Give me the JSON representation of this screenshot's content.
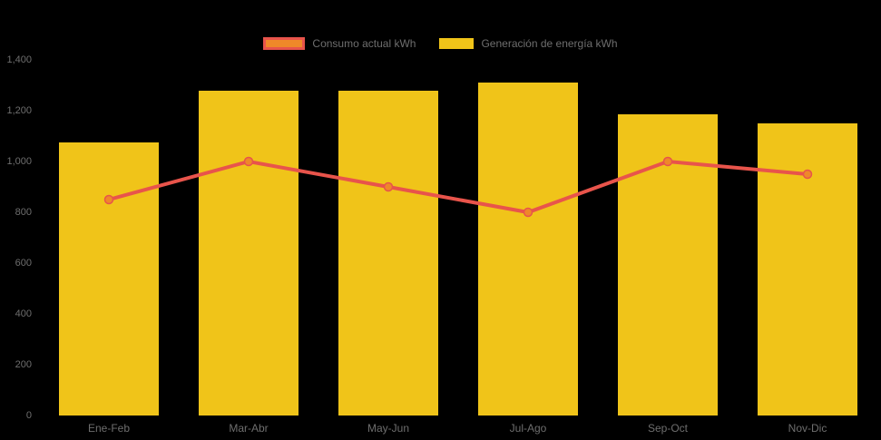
{
  "colors": {
    "background": "#000000",
    "bar_fill": "#F0C419",
    "line_stroke": "#E8544B",
    "marker_fill": "#EF8829",
    "marker_stroke": "#E8544B",
    "axis_text": "#6E6E6E"
  },
  "legend": {
    "position": "top",
    "items": [
      {
        "label": "Consumo actual kWh",
        "swatch": "orange-with-red-border"
      },
      {
        "label": "Generación de energía kWh",
        "swatch": "yellow"
      }
    ]
  },
  "chart_data": {
    "type": "bar",
    "subtype": "bar-line-combo",
    "categories": [
      "Ene-Feb",
      "Mar-Abr",
      "May-Jun",
      "Jul-Ago",
      "Sep-Oct",
      "Nov-Dic"
    ],
    "series": [
      {
        "name": "Generación de energía kWh",
        "type": "bar",
        "color": "#F0C419",
        "values": [
          1075,
          1280,
          1280,
          1310,
          1185,
          1150
        ]
      },
      {
        "name": "Consumo actual kWh",
        "type": "line",
        "color": "#E8544B",
        "marker_color": "#EF8829",
        "values": [
          850,
          1000,
          900,
          800,
          1000,
          950
        ]
      }
    ],
    "title": "",
    "xlabel": "",
    "ylabel": "",
    "ylim": [
      0,
      1400
    ],
    "ytick_step": 200,
    "ytick_labels": [
      "0",
      "200",
      "400",
      "600",
      "800",
      "1,000",
      "1,200",
      "1,400"
    ],
    "grid": false,
    "legend_position": "top-center"
  }
}
